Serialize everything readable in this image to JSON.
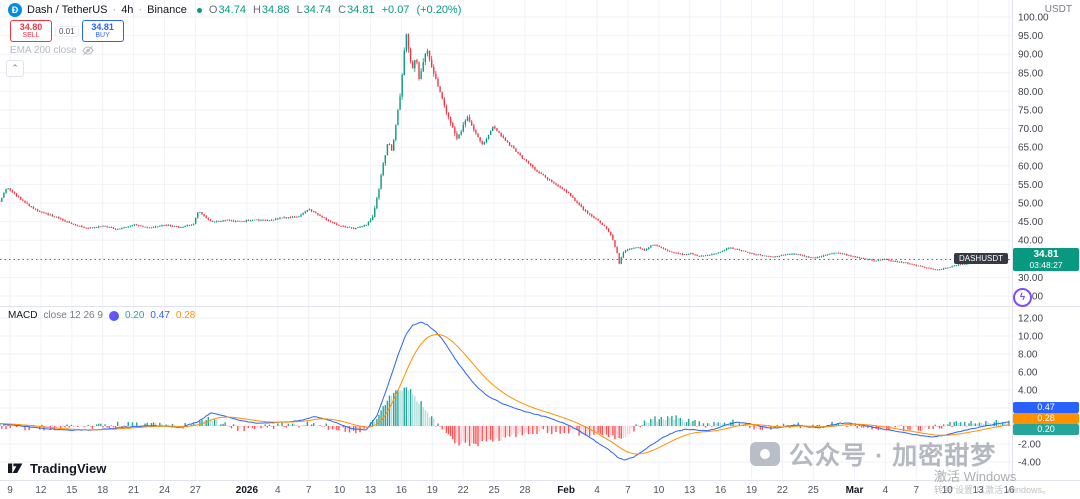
{
  "header": {
    "symbol": "Dash / TetherUS",
    "sep": "·",
    "interval": "4h",
    "exchange": "Binance",
    "ohlc": {
      "o_label": "O",
      "o": "34.74",
      "h_label": "H",
      "h": "34.88",
      "l_label": "L",
      "l": "34.74",
      "c_label": "C",
      "c": "34.81",
      "change": "+0.07",
      "change_pct": "(+0.20%)"
    },
    "quote_currency": "USDT"
  },
  "trade_panel": {
    "sell_price": "34.80",
    "sell_label": "SELL",
    "spread": "0.01",
    "buy_price": "34.81",
    "buy_label": "BUY"
  },
  "indicators": {
    "ema_label": "EMA 200 close"
  },
  "macd_legend": {
    "name": "MACD",
    "params": "close 12 26 9",
    "hist_value": "0.20",
    "macd_value": "0.47",
    "signal_value": "0.28"
  },
  "price_label": {
    "symbol": "DASHUSDT",
    "price": "34.81",
    "countdown": "03:48:27"
  },
  "macd_axis_labels": {
    "macd": "0.47",
    "signal": "0.28",
    "hist": "0.20"
  },
  "logo": {
    "text": "TradingView"
  },
  "watermark": {
    "text": "公众号 · 加密甜梦"
  },
  "windows_activation": {
    "line1": "激活 Windows",
    "line2": "转到“设置”以激活 Windows。"
  },
  "icons": {
    "dash_glyph": "Ð",
    "collapse_glyph": "⌃",
    "lightning_glyph": "ϟ"
  },
  "colors": {
    "up": "#089981",
    "down": "#f23645",
    "macd_line": "#2962ff",
    "signal_line": "#ff9100",
    "hist_grow_pos": "#26a69a",
    "hist_fall_pos": "#b2dfdb",
    "hist_grow_neg": "#ff5252",
    "hist_fall_neg": "#ffcdd2",
    "grid": "#f0f2f7",
    "axis_border": "#e0e3eb",
    "axis_text": "#40434e",
    "price_line": "#089981"
  },
  "chart_data": {
    "type": "candlestick+macd",
    "symbol": "DASHUSDT",
    "interval": "4h",
    "title": "Dash / TetherUS 4h Binance",
    "last_price": 34.81,
    "price_range": [
      25,
      100
    ],
    "price_axis_ticks": [
      100,
      95,
      90,
      85,
      80,
      75,
      70,
      65,
      60,
      55,
      50,
      45,
      40,
      35,
      30,
      25
    ],
    "macd_range": [
      -4,
      12
    ],
    "macd_axis_ticks": [
      12,
      10,
      8,
      6,
      4,
      2,
      0,
      -2,
      -4
    ],
    "num_candles": 480,
    "total_days": 97,
    "time_labels": [
      {
        "t": "9",
        "d": 0
      },
      {
        "t": "12",
        "d": 3
      },
      {
        "t": "15",
        "d": 6
      },
      {
        "t": "18",
        "d": 9
      },
      {
        "t": "21",
        "d": 12
      },
      {
        "t": "24",
        "d": 15
      },
      {
        "t": "27",
        "d": 18
      },
      {
        "t": "2026",
        "d": 23,
        "major": true
      },
      {
        "t": "4",
        "d": 26
      },
      {
        "t": "7",
        "d": 29
      },
      {
        "t": "10",
        "d": 32
      },
      {
        "t": "13",
        "d": 35
      },
      {
        "t": "16",
        "d": 38
      },
      {
        "t": "19",
        "d": 41
      },
      {
        "t": "22",
        "d": 44
      },
      {
        "t": "25",
        "d": 47
      },
      {
        "t": "28",
        "d": 50
      },
      {
        "t": "Feb",
        "d": 54,
        "major": true
      },
      {
        "t": "4",
        "d": 57
      },
      {
        "t": "7",
        "d": 60
      },
      {
        "t": "10",
        "d": 63
      },
      {
        "t": "13",
        "d": 66
      },
      {
        "t": "16",
        "d": 69
      },
      {
        "t": "19",
        "d": 72
      },
      {
        "t": "22",
        "d": 75
      },
      {
        "t": "25",
        "d": 78
      },
      {
        "t": "Mar",
        "d": 82,
        "major": true
      },
      {
        "t": "4",
        "d": 85
      },
      {
        "t": "7",
        "d": 88
      },
      {
        "t": "10",
        "d": 91
      },
      {
        "t": "13",
        "d": 94
      },
      {
        "t": "16",
        "d": 97
      }
    ],
    "price_path": [
      [
        -1,
        50.5
      ],
      [
        -0.3,
        54.2
      ],
      [
        0.8,
        51.5
      ],
      [
        2,
        49
      ],
      [
        3,
        47.5
      ],
      [
        4.5,
        46.2
      ],
      [
        6,
        44.3
      ],
      [
        7.5,
        43.2
      ],
      [
        9,
        43.8
      ],
      [
        10.5,
        42.9
      ],
      [
        12,
        44.2
      ],
      [
        13.5,
        43.3
      ],
      [
        15,
        44.1
      ],
      [
        16.5,
        43.4
      ],
      [
        17.8,
        44.3
      ],
      [
        18.3,
        47.9
      ],
      [
        18.9,
        46.2
      ],
      [
        19.6,
        44.9
      ],
      [
        21,
        45.4
      ],
      [
        22.5,
        45
      ],
      [
        23.6,
        45.6
      ],
      [
        25,
        45.2
      ],
      [
        26.5,
        46.1
      ],
      [
        28,
        46.3
      ],
      [
        29,
        48.4
      ],
      [
        29.9,
        47
      ],
      [
        31,
        45.1
      ],
      [
        32,
        43.9
      ],
      [
        33.5,
        43.1
      ],
      [
        34.6,
        44.2
      ],
      [
        35.2,
        46
      ],
      [
        35.7,
        52
      ],
      [
        36.2,
        60
      ],
      [
        36.7,
        66.5
      ],
      [
        37.1,
        64
      ],
      [
        37.4,
        70
      ],
      [
        37.9,
        79
      ],
      [
        38.2,
        89
      ],
      [
        38.45,
        96
      ],
      [
        38.7,
        91
      ],
      [
        39.1,
        86
      ],
      [
        39.4,
        89.5
      ],
      [
        39.7,
        83.5
      ],
      [
        40.1,
        87
      ],
      [
        40.45,
        92.5
      ],
      [
        40.9,
        87
      ],
      [
        41.4,
        82.5
      ],
      [
        41.9,
        78.5
      ],
      [
        42.4,
        74.5
      ],
      [
        42.9,
        71
      ],
      [
        43.4,
        67.5
      ],
      [
        43.9,
        70
      ],
      [
        44.4,
        72.8
      ],
      [
        44.9,
        70.2
      ],
      [
        45.4,
        68
      ],
      [
        45.9,
        65.5
      ],
      [
        46.4,
        68
      ],
      [
        46.9,
        70.8
      ],
      [
        47.5,
        68.8
      ],
      [
        48.2,
        66.5
      ],
      [
        48.9,
        64.5
      ],
      [
        49.6,
        62.5
      ],
      [
        50.4,
        60.5
      ],
      [
        51.2,
        58.5
      ],
      [
        52.2,
        56.5
      ],
      [
        53.2,
        54.5
      ],
      [
        54.1,
        53
      ],
      [
        54.9,
        50.5
      ],
      [
        55.6,
        48.5
      ],
      [
        56.4,
        46.5
      ],
      [
        57.1,
        45.2
      ],
      [
        57.9,
        43.2
      ],
      [
        58.4,
        41
      ],
      [
        58.9,
        37
      ],
      [
        59.15,
        33.8
      ],
      [
        59.5,
        36.6
      ],
      [
        60,
        37.6
      ],
      [
        60.9,
        38.1
      ],
      [
        61.6,
        37.3
      ],
      [
        62.4,
        38.9
      ],
      [
        63.1,
        38.1
      ],
      [
        63.9,
        37.1
      ],
      [
        64.6,
        36.6
      ],
      [
        65.4,
        36.1
      ],
      [
        66.1,
        36.4
      ],
      [
        66.9,
        35.7
      ],
      [
        67.6,
        36
      ],
      [
        68.4,
        36.3
      ],
      [
        69.1,
        36.9
      ],
      [
        69.7,
        38.1
      ],
      [
        70.4,
        37.6
      ],
      [
        71.1,
        37.1
      ],
      [
        72.1,
        36.3
      ],
      [
        73.1,
        35.9
      ],
      [
        74.1,
        35.5
      ],
      [
        75.1,
        36
      ],
      [
        76.1,
        36.4
      ],
      [
        77.1,
        35.7
      ],
      [
        78.1,
        35.3
      ],
      [
        79.1,
        35.9
      ],
      [
        80.1,
        36.7
      ],
      [
        80.9,
        36.3
      ],
      [
        82,
        35.5
      ],
      [
        83,
        35
      ],
      [
        84,
        34.5
      ],
      [
        85,
        34.9
      ],
      [
        86,
        34.2
      ],
      [
        87,
        33.9
      ],
      [
        88,
        33.2
      ],
      [
        89,
        32.6
      ],
      [
        90,
        32
      ],
      [
        91,
        32.6
      ],
      [
        92,
        33.4
      ],
      [
        93,
        33.8
      ],
      [
        94,
        34.1
      ],
      [
        95,
        34.4
      ],
      [
        96,
        34.65
      ],
      [
        97,
        34.81
      ]
    ],
    "macd_path": [
      [
        -1,
        0.25
      ],
      [
        2,
        -0.1
      ],
      [
        5,
        -0.45
      ],
      [
        8,
        -0.45
      ],
      [
        11,
        -0.15
      ],
      [
        14,
        0.05
      ],
      [
        16.5,
        -0.15
      ],
      [
        18.3,
        0.5
      ],
      [
        19.5,
        1.45
      ],
      [
        21,
        1.05
      ],
      [
        22.5,
        0.55
      ],
      [
        24,
        0.3
      ],
      [
        26,
        0.4
      ],
      [
        28,
        0.55
      ],
      [
        29.6,
        1.05
      ],
      [
        31,
        0.65
      ],
      [
        33,
        -0.25
      ],
      [
        34.6,
        -0.45
      ],
      [
        35.6,
        1.1
      ],
      [
        36.6,
        4.2
      ],
      [
        37.6,
        7.6
      ],
      [
        38.4,
        10.1
      ],
      [
        39.1,
        11.2
      ],
      [
        39.9,
        11.55
      ],
      [
        40.6,
        11.2
      ],
      [
        41.4,
        10.4
      ],
      [
        42.2,
        9.3
      ],
      [
        43.2,
        7.5
      ],
      [
        44.2,
        5.9
      ],
      [
        45.2,
        4.5
      ],
      [
        46.2,
        3.5
      ],
      [
        47.2,
        2.85
      ],
      [
        48.2,
        2.3
      ],
      [
        49.2,
        1.9
      ],
      [
        50.2,
        1.55
      ],
      [
        51.2,
        1.25
      ],
      [
        52.2,
        0.95
      ],
      [
        53.2,
        0.55
      ],
      [
        54.2,
        0.1
      ],
      [
        55.2,
        -0.5
      ],
      [
        56.2,
        -1.2
      ],
      [
        57.2,
        -1.95
      ],
      [
        58.2,
        -2.7
      ],
      [
        59,
        -3.45
      ],
      [
        59.6,
        -3.8
      ],
      [
        60.6,
        -3.45
      ],
      [
        61.6,
        -2.65
      ],
      [
        62.6,
        -1.85
      ],
      [
        63.6,
        -1.15
      ],
      [
        64.6,
        -0.65
      ],
      [
        65.6,
        -0.35
      ],
      [
        66.6,
        -0.45
      ],
      [
        67.6,
        -0.5
      ],
      [
        68.6,
        -0.3
      ],
      [
        69.6,
        0.15
      ],
      [
        70.6,
        0.4
      ],
      [
        71.6,
        0.3
      ],
      [
        72.6,
        0.05
      ],
      [
        73.6,
        -0.2
      ],
      [
        74.6,
        -0.2
      ],
      [
        75.6,
        0
      ],
      [
        76.6,
        0.1
      ],
      [
        77.6,
        -0.1
      ],
      [
        78.6,
        -0.2
      ],
      [
        79.6,
        0.05
      ],
      [
        80.6,
        0.3
      ],
      [
        81.6,
        0.3
      ],
      [
        82.6,
        0.1
      ],
      [
        83.6,
        -0.1
      ],
      [
        84.6,
        -0.3
      ],
      [
        85.6,
        -0.5
      ],
      [
        86.6,
        -0.7
      ],
      [
        87.6,
        -0.9
      ],
      [
        88.6,
        -1.1
      ],
      [
        89.6,
        -1.2
      ],
      [
        90.6,
        -1.05
      ],
      [
        91.6,
        -0.8
      ],
      [
        92.6,
        -0.5
      ],
      [
        93.6,
        -0.25
      ],
      [
        94.6,
        -0.02
      ],
      [
        95.6,
        0.2
      ],
      [
        96.4,
        0.38
      ],
      [
        97,
        0.47
      ]
    ]
  }
}
